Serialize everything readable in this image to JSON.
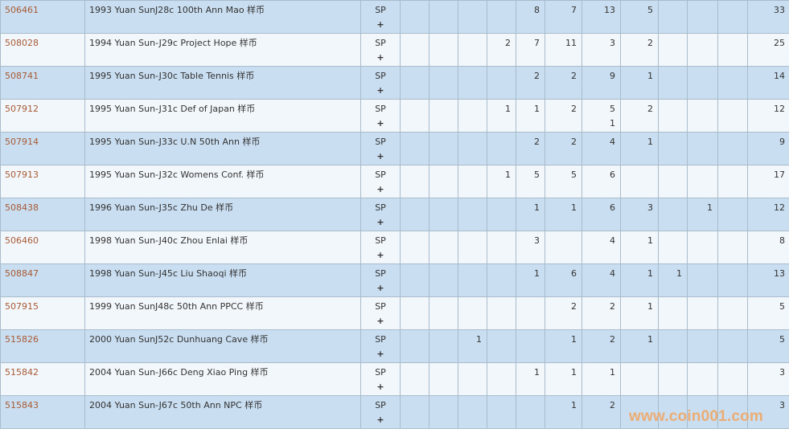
{
  "colors": {
    "row_alt": "#c9def0",
    "row": "#f2f7fb",
    "link": "#a85a34",
    "watermark": "#f0a868"
  },
  "rows": [
    {
      "id": "506461",
      "desc": "1993 Yuan SunJ28c 100th Ann Mao 样币",
      "grade": "SP",
      "plus": "+",
      "cells": [
        "",
        "",
        "",
        "",
        "8",
        "7",
        "13",
        "5",
        "",
        "",
        ""
      ],
      "total": "33"
    },
    {
      "id": "508028",
      "desc": "1994 Yuan Sun-J29c Project Hope 样币",
      "grade": "SP",
      "plus": "+",
      "cells": [
        "",
        "",
        "",
        "2",
        "7",
        "11",
        "3",
        "2",
        "",
        "",
        ""
      ],
      "total": "25"
    },
    {
      "id": "508741",
      "desc": "1995 Yuan Sun-J30c Table Tennis 样币",
      "grade": "SP",
      "plus": "+",
      "cells": [
        "",
        "",
        "",
        "",
        "2",
        "2",
        "9",
        "1",
        "",
        "",
        ""
      ],
      "total": "14"
    },
    {
      "id": "507912",
      "desc": "1995 Yuan Sun-J31c Def of Japan 样币",
      "grade": "SP",
      "plus": "+",
      "cells": [
        "",
        "",
        "",
        "1",
        "1",
        "2",
        "5\n1",
        "2",
        "",
        "",
        ""
      ],
      "total": "12"
    },
    {
      "id": "507914",
      "desc": "1995 Yuan Sun-J33c U.N 50th Ann 样币",
      "grade": "SP",
      "plus": "+",
      "cells": [
        "",
        "",
        "",
        "",
        "2",
        "2",
        "4",
        "1",
        "",
        "",
        ""
      ],
      "total": "9"
    },
    {
      "id": "507913",
      "desc": "1995 Yuan Sun-J32c Womens Conf. 样币",
      "grade": "SP",
      "plus": "+",
      "cells": [
        "",
        "",
        "",
        "1",
        "5",
        "5",
        "6",
        "",
        "",
        "",
        ""
      ],
      "total": "17"
    },
    {
      "id": "508438",
      "desc": "1996 Yuan Sun-J35c Zhu De 样币",
      "grade": "SP",
      "plus": "+",
      "cells": [
        "",
        "",
        "",
        "",
        "1",
        "1",
        "6",
        "3",
        "",
        "1",
        ""
      ],
      "total": "12"
    },
    {
      "id": "506460",
      "desc": "1998 Yuan Sun-J40c Zhou Enlai 样币",
      "grade": "SP",
      "plus": "+",
      "cells": [
        "",
        "",
        "",
        "",
        "3",
        "",
        "4",
        "1",
        "",
        "",
        ""
      ],
      "total": "8"
    },
    {
      "id": "508847",
      "desc": "1998 Yuan Sun-J45c Liu Shaoqi 样币",
      "grade": "SP",
      "plus": "+",
      "cells": [
        "",
        "",
        "",
        "",
        "1",
        "6",
        "4",
        "1",
        "1",
        "",
        ""
      ],
      "total": "13"
    },
    {
      "id": "507915",
      "desc": "1999 Yuan SunJ48c 50th Ann PPCC 样币",
      "grade": "SP",
      "plus": "+",
      "cells": [
        "",
        "",
        "",
        "",
        "",
        "2",
        "2",
        "1",
        "",
        "",
        ""
      ],
      "total": "5"
    },
    {
      "id": "515826",
      "desc": "2000 Yuan SunJ52c Dunhuang Cave 样币",
      "grade": "SP",
      "plus": "+",
      "cells": [
        "",
        "",
        "1",
        "",
        "",
        "1",
        "2",
        "1",
        "",
        "",
        ""
      ],
      "total": "5"
    },
    {
      "id": "515842",
      "desc": "2004 Yuan Sun-J66c Deng Xiao Ping 样币",
      "grade": "SP",
      "plus": "+",
      "cells": [
        "",
        "",
        "",
        "",
        "1",
        "1",
        "1",
        "",
        "",
        "",
        ""
      ],
      "total": "3"
    },
    {
      "id": "515843",
      "desc": "2004 Yuan Sun-J67c 50th Ann NPC 样币",
      "grade": "SP",
      "plus": "+",
      "cells": [
        "",
        "",
        "",
        "",
        "",
        "1",
        "2",
        "",
        "",
        "",
        ""
      ],
      "total": "3"
    }
  ],
  "watermark": "www.coin001.com"
}
